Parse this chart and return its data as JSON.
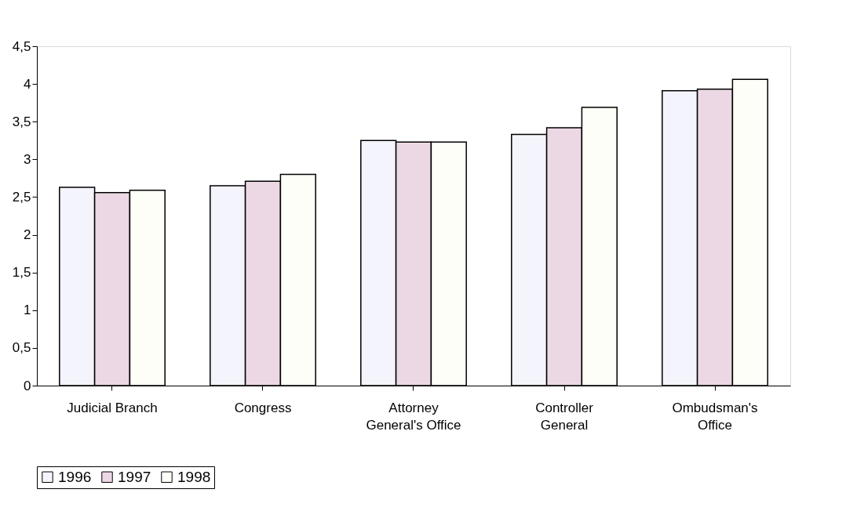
{
  "chart_data": {
    "type": "bar",
    "categories": [
      "Judicial Branch",
      "Congress",
      "Attorney\nGeneral's Office",
      "Controller\nGeneral",
      "Ombudsman's\nOffice"
    ],
    "series": [
      {
        "name": "1996",
        "color": "#f4f4fc",
        "values": [
          2.63,
          2.65,
          3.25,
          3.33,
          3.91
        ]
      },
      {
        "name": "1997",
        "color": "#ecd8e4",
        "values": [
          2.56,
          2.71,
          3.23,
          3.42,
          3.93
        ]
      },
      {
        "name": "1998",
        "color": "#fefef8",
        "values": [
          2.59,
          2.8,
          3.23,
          3.69,
          4.06
        ]
      }
    ],
    "ylim": [
      0,
      4.5
    ],
    "yticks": [
      0,
      {
        "value": 0.5,
        "label": "0,5"
      },
      1,
      {
        "value": 1.5,
        "label": "1,5"
      },
      2,
      {
        "value": 2.5,
        "label": "2,5"
      },
      3,
      {
        "value": 3.5,
        "label": "3,5"
      },
      4,
      {
        "value": 4.5,
        "label": "4,5"
      }
    ],
    "grid": false,
    "legend": "bottom"
  }
}
